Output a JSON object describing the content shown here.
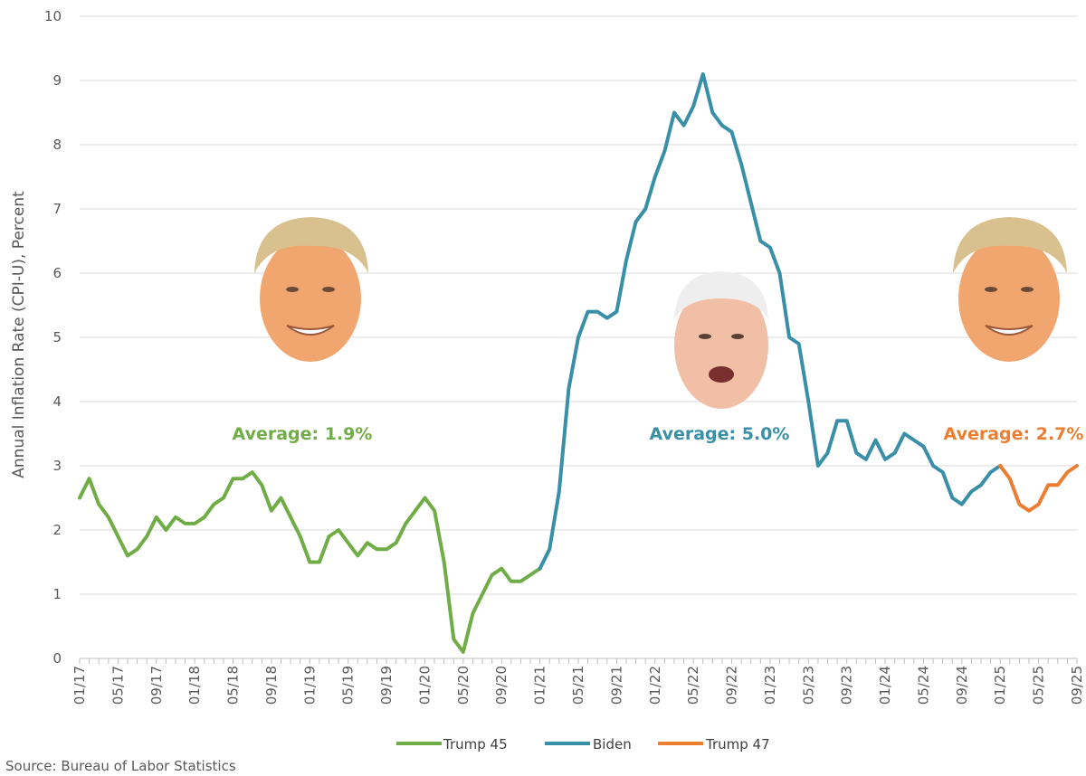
{
  "chart_data": {
    "type": "line",
    "ylabel": "Annual Inflation Rate (CPI-U), Percent",
    "ylim": [
      0,
      10
    ],
    "y_ticks": [
      0,
      1,
      2,
      3,
      4,
      5,
      6,
      7,
      8,
      9,
      10
    ],
    "x_ticks": [
      "01/17",
      "05/17",
      "09/17",
      "01/18",
      "05/18",
      "09/18",
      "01/19",
      "05/19",
      "09/19",
      "01/20",
      "05/20",
      "09/20",
      "01/21",
      "05/21",
      "09/21",
      "01/22",
      "05/22",
      "09/22",
      "01/23",
      "05/23",
      "09/23",
      "01/24",
      "05/24",
      "09/24",
      "01/25",
      "05/25",
      "09/25"
    ],
    "grid": true,
    "legend_position": "bottom",
    "series": [
      {
        "name": "Trump 45",
        "color": "#70ad47",
        "start": "01/17",
        "values": [
          2.5,
          2.8,
          2.4,
          2.2,
          1.9,
          1.6,
          1.7,
          1.9,
          2.2,
          2.0,
          2.2,
          2.1,
          2.1,
          2.2,
          2.4,
          2.5,
          2.8,
          2.8,
          2.9,
          2.7,
          2.3,
          2.5,
          2.2,
          1.9,
          1.5,
          1.5,
          1.9,
          2.0,
          1.8,
          1.6,
          1.8,
          1.7,
          1.7,
          1.8,
          2.1,
          2.3,
          2.5,
          2.3,
          1.5,
          0.3,
          0.1,
          0.7,
          1.0,
          1.3,
          1.4,
          1.2,
          1.2,
          1.3,
          1.4
        ]
      },
      {
        "name": "Biden",
        "color": "#3a8fa8",
        "start": "01/21",
        "values": [
          1.4,
          1.7,
          2.6,
          4.2,
          5.0,
          5.4,
          5.4,
          5.3,
          5.4,
          6.2,
          6.8,
          7.0,
          7.5,
          7.9,
          8.5,
          8.3,
          8.6,
          9.1,
          8.5,
          8.3,
          8.2,
          7.7,
          7.1,
          6.5,
          6.4,
          6.0,
          5.0,
          4.9,
          4.0,
          3.0,
          3.2,
          3.7,
          3.7,
          3.2,
          3.1,
          3.4,
          3.1,
          3.2,
          3.5,
          3.4,
          3.3,
          3.0,
          2.9,
          2.5,
          2.4,
          2.6,
          2.7,
          2.9,
          3.0
        ]
      },
      {
        "name": "Trump 47",
        "color": "#ed7d31",
        "start": "01/25",
        "values": [
          3.0,
          2.8,
          2.4,
          2.3,
          2.4,
          2.7,
          2.7,
          2.9,
          3.0
        ]
      }
    ],
    "annotations": [
      {
        "text": "Average: 1.9%",
        "color": "#70ad47"
      },
      {
        "text": "Average: 5.0%",
        "color": "#3a8fa8"
      },
      {
        "text": "Average: 2.7%",
        "color": "#ed7d31"
      }
    ],
    "images": [
      {
        "name": "trump-45-portrait"
      },
      {
        "name": "biden-portrait"
      },
      {
        "name": "trump-47-portrait"
      }
    ],
    "source": "Source: Bureau of Labor Statistics"
  }
}
